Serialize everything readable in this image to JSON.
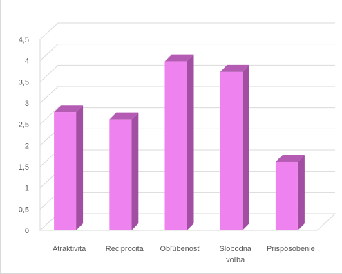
{
  "chart_data": {
    "type": "bar",
    "title": "",
    "xlabel": "",
    "ylabel": "",
    "categories": [
      [
        "Atraktivita"
      ],
      [
        "Reciprocita"
      ],
      [
        "Obľúbenosť"
      ],
      [
        "Slobodná",
        "voľba"
      ],
      [
        "Prispôsobenie"
      ]
    ],
    "values": [
      2.85,
      2.68,
      4.05,
      3.8,
      1.68
    ],
    "ylim": [
      0,
      4.5
    ],
    "yticks": [
      "0",
      "0,5",
      "1",
      "1,5",
      "2",
      "2,5",
      "3",
      "3,5",
      "4",
      "4,5"
    ],
    "grid": true,
    "legend": "none",
    "style": "3d-column",
    "colors": {
      "front": "#ee82ee",
      "side": "#a24ea2",
      "top": "#b45cb4",
      "grid": "#d9d9d9"
    }
  }
}
